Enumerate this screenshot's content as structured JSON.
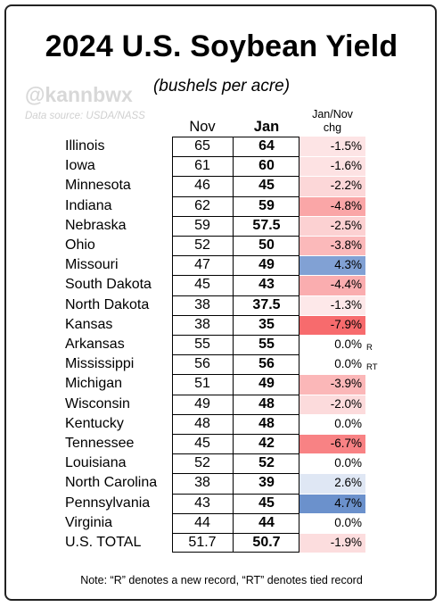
{
  "chart_data": {
    "type": "table",
    "title": "2024 U.S. Soybean Yield",
    "subtitle": "(bushels per acre)",
    "watermark": "@kannbwx",
    "source": "Data source: USDA/NASS",
    "columns": [
      "Nov",
      "Jan",
      "Jan/Nov chg"
    ],
    "rows": [
      {
        "state": "Illinois",
        "nov": "65",
        "jan": "64",
        "chg": "-1.5%",
        "chg_value": -1.5,
        "flag": ""
      },
      {
        "state": "Iowa",
        "nov": "61",
        "jan": "60",
        "chg": "-1.6%",
        "chg_value": -1.6,
        "flag": ""
      },
      {
        "state": "Minnesota",
        "nov": "46",
        "jan": "45",
        "chg": "-2.2%",
        "chg_value": -2.2,
        "flag": ""
      },
      {
        "state": "Indiana",
        "nov": "62",
        "jan": "59",
        "chg": "-4.8%",
        "chg_value": -4.8,
        "flag": ""
      },
      {
        "state": "Nebraska",
        "nov": "59",
        "jan": "57.5",
        "chg": "-2.5%",
        "chg_value": -2.5,
        "flag": ""
      },
      {
        "state": "Ohio",
        "nov": "52",
        "jan": "50",
        "chg": "-3.8%",
        "chg_value": -3.8,
        "flag": ""
      },
      {
        "state": "Missouri",
        "nov": "47",
        "jan": "49",
        "chg": "4.3%",
        "chg_value": 4.3,
        "flag": ""
      },
      {
        "state": "South Dakota",
        "nov": "45",
        "jan": "43",
        "chg": "-4.4%",
        "chg_value": -4.4,
        "flag": ""
      },
      {
        "state": "North Dakota",
        "nov": "38",
        "jan": "37.5",
        "chg": "-1.3%",
        "chg_value": -1.3,
        "flag": ""
      },
      {
        "state": "Kansas",
        "nov": "38",
        "jan": "35",
        "chg": "-7.9%",
        "chg_value": -7.9,
        "flag": ""
      },
      {
        "state": "Arkansas",
        "nov": "55",
        "jan": "55",
        "chg": "0.0%",
        "chg_value": 0.0,
        "flag": "R"
      },
      {
        "state": "Mississippi",
        "nov": "56",
        "jan": "56",
        "chg": "0.0%",
        "chg_value": 0.0,
        "flag": "RT"
      },
      {
        "state": "Michigan",
        "nov": "51",
        "jan": "49",
        "chg": "-3.9%",
        "chg_value": -3.9,
        "flag": ""
      },
      {
        "state": "Wisconsin",
        "nov": "49",
        "jan": "48",
        "chg": "-2.0%",
        "chg_value": -2.0,
        "flag": ""
      },
      {
        "state": "Kentucky",
        "nov": "48",
        "jan": "48",
        "chg": "0.0%",
        "chg_value": 0.0,
        "flag": ""
      },
      {
        "state": "Tennessee",
        "nov": "45",
        "jan": "42",
        "chg": "-6.7%",
        "chg_value": -6.7,
        "flag": ""
      },
      {
        "state": "Louisiana",
        "nov": "52",
        "jan": "52",
        "chg": "0.0%",
        "chg_value": 0.0,
        "flag": ""
      },
      {
        "state": "North Carolina",
        "nov": "38",
        "jan": "39",
        "chg": "2.6%",
        "chg_value": 2.6,
        "flag": ""
      },
      {
        "state": "Pennsylvania",
        "nov": "43",
        "jan": "45",
        "chg": "4.7%",
        "chg_value": 4.7,
        "flag": ""
      },
      {
        "state": "Virginia",
        "nov": "44",
        "jan": "44",
        "chg": "0.0%",
        "chg_value": 0.0,
        "flag": ""
      },
      {
        "state": "U.S. TOTAL",
        "nov": "51.7",
        "jan": "50.7",
        "chg": "-1.9%",
        "chg_value": -1.9,
        "flag": ""
      }
    ],
    "colors": {
      "negative_strong": "#f76b6d",
      "negative_light": "#fde8e9",
      "positive_strong": "#6b91cc",
      "positive_light": "#dfe7f4",
      "neutral": "#ffffff"
    },
    "note": "Note: “R” denotes a new record, “RT” denotes tied record"
  }
}
